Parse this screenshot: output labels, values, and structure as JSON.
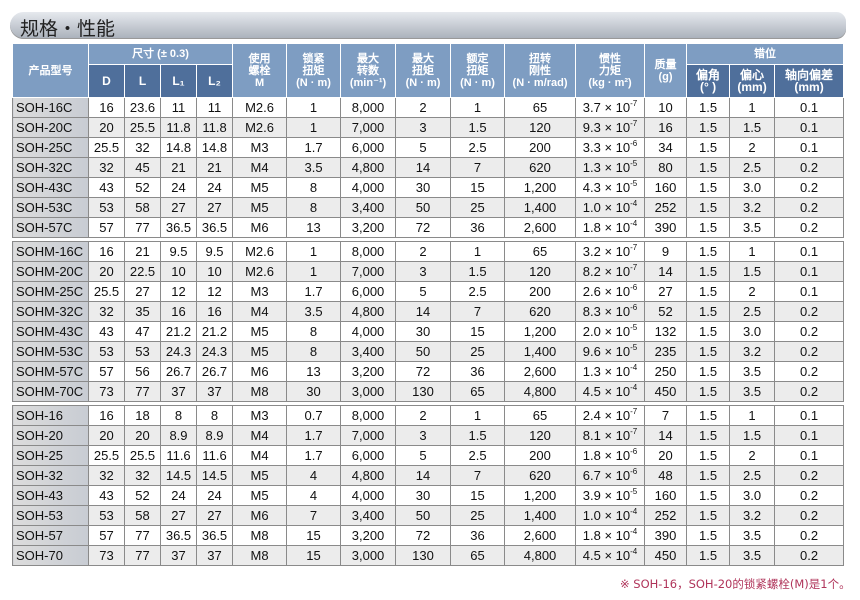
{
  "title": "规格・性能",
  "header": {
    "model": "产品型号",
    "dims": "尺寸 (± 0.3)",
    "D": "D",
    "L": "L",
    "L1": "L₁",
    "L2": "L₂",
    "bolt": [
      "使用",
      "螺栓",
      "M"
    ],
    "lock": [
      "锁紧",
      "扭矩",
      "(N · m)"
    ],
    "speed": [
      "最大",
      "转数",
      "(min⁻¹)"
    ],
    "maxtorque": [
      "最大",
      "扭矩",
      "(N · m)"
    ],
    "rated": [
      "额定",
      "扭矩",
      "(N · m)"
    ],
    "stiff": [
      "扭转",
      "刚性",
      "(N · m/rad)"
    ],
    "inertia": [
      "惯性",
      "力矩",
      "(kg · m²)"
    ],
    "mass": [
      "质量",
      "(g)"
    ],
    "misalign": "错位",
    "angle": [
      "偏角",
      "(°  )"
    ],
    "ecc": [
      "偏心",
      "(mm)"
    ],
    "axial": [
      "轴向偏差",
      "(mm)"
    ]
  },
  "groups": [
    [
      [
        "SOH-16C",
        "16",
        "23.6",
        "11",
        "11",
        "M2.6",
        "1",
        "8,000",
        "2",
        "1",
        "65",
        "3.7",
        "-7",
        "10",
        "1.5",
        "1",
        "0.1"
      ],
      [
        "SOH-20C",
        "20",
        "25.5",
        "11.8",
        "11.8",
        "M2.6",
        "1",
        "7,000",
        "3",
        "1.5",
        "120",
        "9.3",
        "-7",
        "16",
        "1.5",
        "1.5",
        "0.1"
      ],
      [
        "SOH-25C",
        "25.5",
        "32",
        "14.8",
        "14.8",
        "M3",
        "1.7",
        "6,000",
        "5",
        "2.5",
        "200",
        "3.3",
        "-6",
        "34",
        "1.5",
        "2",
        "0.1"
      ],
      [
        "SOH-32C",
        "32",
        "45",
        "21",
        "21",
        "M4",
        "3.5",
        "4,800",
        "14",
        "7",
        "620",
        "1.3",
        "-5",
        "80",
        "1.5",
        "2.5",
        "0.2"
      ],
      [
        "SOH-43C",
        "43",
        "52",
        "24",
        "24",
        "M5",
        "8",
        "4,000",
        "30",
        "15",
        "1,200",
        "4.3",
        "-5",
        "160",
        "1.5",
        "3.0",
        "0.2"
      ],
      [
        "SOH-53C",
        "53",
        "58",
        "27",
        "27",
        "M5",
        "8",
        "3,400",
        "50",
        "25",
        "1,400",
        "1.0",
        "-4",
        "252",
        "1.5",
        "3.2",
        "0.2"
      ],
      [
        "SOH-57C",
        "57",
        "77",
        "36.5",
        "36.5",
        "M6",
        "13",
        "3,200",
        "72",
        "36",
        "2,600",
        "1.8",
        "-4",
        "390",
        "1.5",
        "3.5",
        "0.2"
      ]
    ],
    [
      [
        "SOHM-16C",
        "16",
        "21",
        "9.5",
        "9.5",
        "M2.6",
        "1",
        "8,000",
        "2",
        "1",
        "65",
        "3.2",
        "-7",
        "9",
        "1.5",
        "1",
        "0.1"
      ],
      [
        "SOHM-20C",
        "20",
        "22.5",
        "10",
        "10",
        "M2.6",
        "1",
        "7,000",
        "3",
        "1.5",
        "120",
        "8.2",
        "-7",
        "14",
        "1.5",
        "1.5",
        "0.1"
      ],
      [
        "SOHM-25C",
        "25.5",
        "27",
        "12",
        "12",
        "M3",
        "1.7",
        "6,000",
        "5",
        "2.5",
        "200",
        "2.6",
        "-6",
        "27",
        "1.5",
        "2",
        "0.1"
      ],
      [
        "SOHM-32C",
        "32",
        "35",
        "16",
        "16",
        "M4",
        "3.5",
        "4,800",
        "14",
        "7",
        "620",
        "8.3",
        "-6",
        "52",
        "1.5",
        "2.5",
        "0.2"
      ],
      [
        "SOHM-43C",
        "43",
        "47",
        "21.2",
        "21.2",
        "M5",
        "8",
        "4,000",
        "30",
        "15",
        "1,200",
        "2.0",
        "-5",
        "132",
        "1.5",
        "3.0",
        "0.2"
      ],
      [
        "SOHM-53C",
        "53",
        "53",
        "24.3",
        "24.3",
        "M5",
        "8",
        "3,400",
        "50",
        "25",
        "1,400",
        "9.6",
        "-5",
        "235",
        "1.5",
        "3.2",
        "0.2"
      ],
      [
        "SOHM-57C",
        "57",
        "56",
        "26.7",
        "26.7",
        "M6",
        "13",
        "3,200",
        "72",
        "36",
        "2,600",
        "1.3",
        "-4",
        "250",
        "1.5",
        "3.5",
        "0.2"
      ],
      [
        "SOHM-70C",
        "73",
        "77",
        "37",
        "37",
        "M8",
        "30",
        "3,000",
        "130",
        "65",
        "4,800",
        "4.5",
        "-4",
        "450",
        "1.5",
        "3.5",
        "0.2"
      ]
    ],
    [
      [
        "SOH-16",
        "16",
        "18",
        "8",
        "8",
        "M3",
        "0.7",
        "8,000",
        "2",
        "1",
        "65",
        "2.4",
        "-7",
        "7",
        "1.5",
        "1",
        "0.1"
      ],
      [
        "SOH-20",
        "20",
        "20",
        "8.9",
        "8.9",
        "M4",
        "1.7",
        "7,000",
        "3",
        "1.5",
        "120",
        "8.1",
        "-7",
        "14",
        "1.5",
        "1.5",
        "0.1"
      ],
      [
        "SOH-25",
        "25.5",
        "25.5",
        "11.6",
        "11.6",
        "M4",
        "1.7",
        "6,000",
        "5",
        "2.5",
        "200",
        "1.8",
        "-6",
        "20",
        "1.5",
        "2",
        "0.1"
      ],
      [
        "SOH-32",
        "32",
        "32",
        "14.5",
        "14.5",
        "M5",
        "4",
        "4,800",
        "14",
        "7",
        "620",
        "6.7",
        "-6",
        "48",
        "1.5",
        "2.5",
        "0.2"
      ],
      [
        "SOH-43",
        "43",
        "52",
        "24",
        "24",
        "M5",
        "4",
        "4,000",
        "30",
        "15",
        "1,200",
        "3.9",
        "-5",
        "160",
        "1.5",
        "3.0",
        "0.2"
      ],
      [
        "SOH-53",
        "53",
        "58",
        "27",
        "27",
        "M6",
        "7",
        "3,400",
        "50",
        "25",
        "1,400",
        "1.0",
        "-4",
        "252",
        "1.5",
        "3.2",
        "0.2"
      ],
      [
        "SOH-57",
        "57",
        "77",
        "36.5",
        "36.5",
        "M8",
        "15",
        "3,200",
        "72",
        "36",
        "2,600",
        "1.8",
        "-4",
        "390",
        "1.5",
        "3.5",
        "0.2"
      ],
      [
        "SOH-70",
        "73",
        "77",
        "37",
        "37",
        "M8",
        "15",
        "3,000",
        "130",
        "65",
        "4,800",
        "4.5",
        "-4",
        "450",
        "1.5",
        "3.5",
        "0.2"
      ]
    ]
  ],
  "note": "※ SOH-16，SOH-20的锁紧螺栓(M)是1个。",
  "colors": {
    "header": "#7e9dc2",
    "subheader": "#4f6f9b",
    "note": "#b0345a"
  }
}
